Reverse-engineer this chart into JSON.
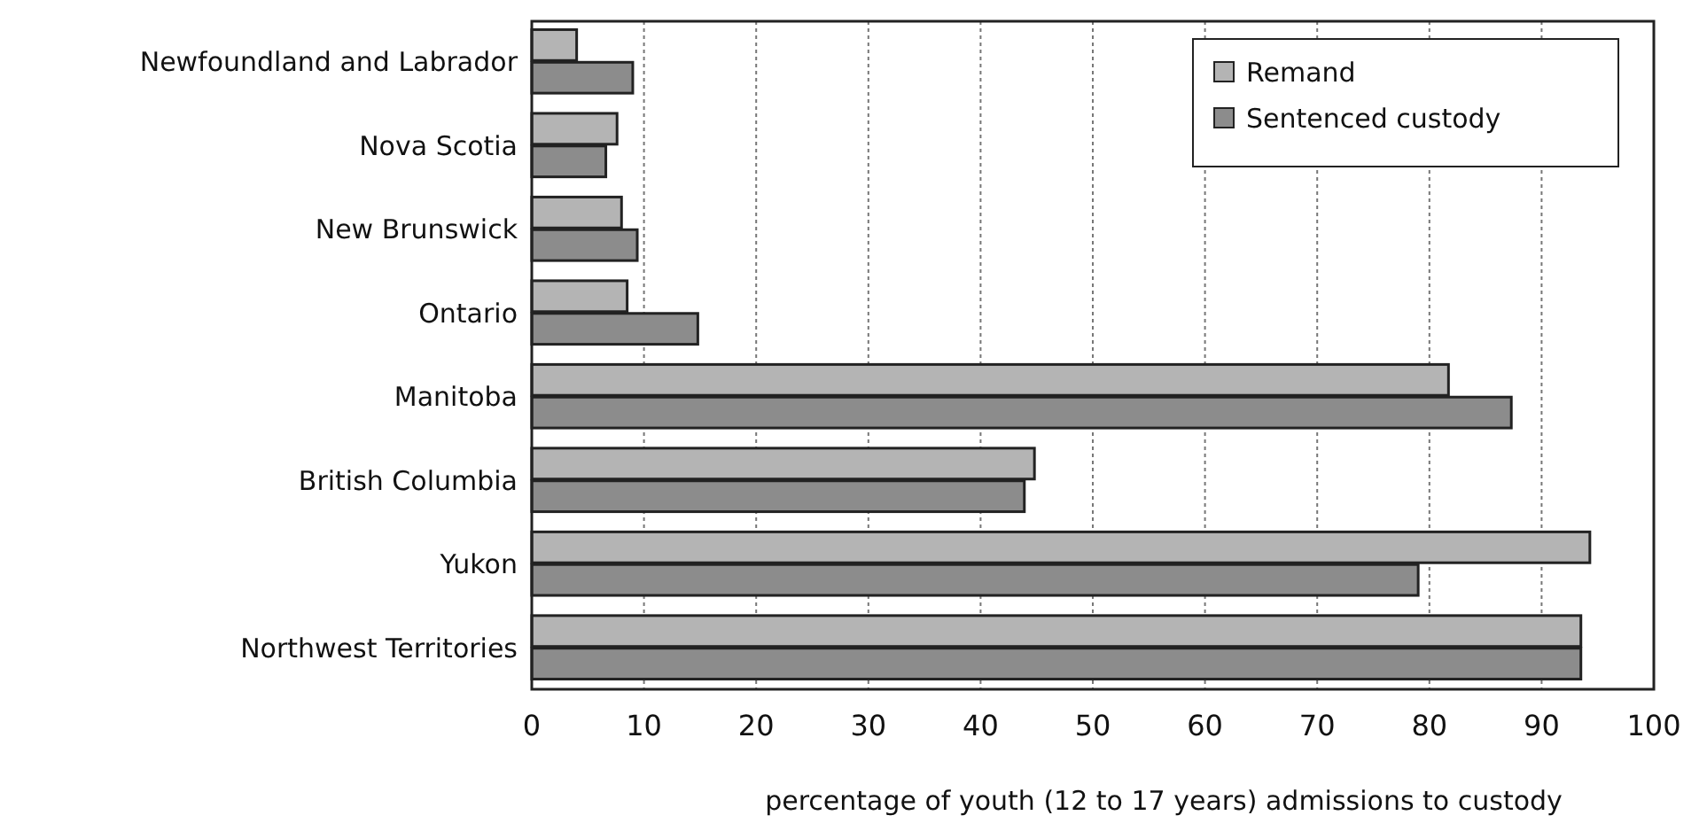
{
  "chart_data": {
    "type": "bar",
    "orientation": "horizontal",
    "xlabel": "percentage of youth (12 to 17 years) admissions to custody",
    "categories": [
      "Newfoundland and Labrador",
      "Nova Scotia",
      "New Brunswick",
      "Ontario",
      "Manitoba",
      "British Columbia",
      "Yukon",
      "Northwest Territories"
    ],
    "series": [
      {
        "name": "Remand",
        "color": "#b4b4b4",
        "values": [
          4.0,
          7.6,
          8.0,
          8.5,
          81.7,
          44.8,
          94.3,
          93.5
        ]
      },
      {
        "name": "Sentenced custody",
        "color": "#8c8c8c",
        "values": [
          9.0,
          6.6,
          9.4,
          14.8,
          87.3,
          43.9,
          79.0,
          93.5
        ]
      }
    ],
    "xlim": [
      0,
      100
    ],
    "xticks": [
      0,
      10,
      20,
      30,
      40,
      50,
      60,
      70,
      80,
      90,
      100
    ],
    "grid": "x",
    "legend": "top right"
  }
}
